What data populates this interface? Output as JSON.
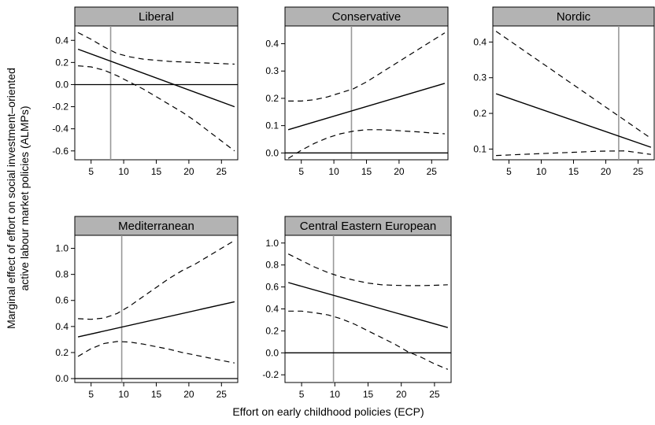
{
  "figure": {
    "ylabel_line1": "Marginal effect of effort on social investment–oriented",
    "ylabel_line2": "active labour market policies (ALMPs)",
    "xlabel": "Effort on early childhood policies (ECP)"
  },
  "chart_data": [
    {
      "type": "line",
      "title": "Liberal",
      "xlim": [
        2.5,
        27.5
      ],
      "ylim": [
        -0.68,
        0.53
      ],
      "xticks": [
        5,
        10,
        15,
        20,
        25
      ],
      "yticks": [
        -0.6,
        -0.4,
        -0.2,
        0.0,
        0.2,
        0.4
      ],
      "ytick_labels": [
        "-0.6",
        "-0.4",
        "-0.2",
        "0.0",
        "0.2",
        "0.4"
      ],
      "vline": 8,
      "series": [
        {
          "x": [
            3,
            27
          ],
          "y": [
            0.32,
            -0.2
          ],
          "style": "solid"
        },
        {
          "x": [
            3,
            5,
            7,
            9,
            11,
            13,
            15,
            17,
            19,
            21,
            23,
            25,
            27
          ],
          "y": [
            0.47,
            0.41,
            0.34,
            0.28,
            0.25,
            0.23,
            0.22,
            0.21,
            0.205,
            0.2,
            0.195,
            0.19,
            0.185
          ],
          "style": "dashed"
        },
        {
          "x": [
            3,
            5,
            7,
            9,
            11,
            13,
            15,
            17,
            19,
            21,
            23,
            25,
            27
          ],
          "y": [
            0.17,
            0.16,
            0.13,
            0.08,
            0.02,
            -0.04,
            -0.11,
            -0.18,
            -0.25,
            -0.33,
            -0.42,
            -0.51,
            -0.6
          ],
          "style": "dashed"
        },
        {
          "x": [
            2.5,
            27.5
          ],
          "y": [
            0,
            0
          ],
          "style": "zero"
        }
      ]
    },
    {
      "type": "line",
      "title": "Conservative",
      "xlim": [
        2.5,
        27.5
      ],
      "ylim": [
        -0.025,
        0.465
      ],
      "xticks": [
        5,
        10,
        15,
        20,
        25
      ],
      "yticks": [
        0.0,
        0.1,
        0.2,
        0.3,
        0.4
      ],
      "ytick_labels": [
        "0.0",
        "0.1",
        "0.2",
        "0.3",
        "0.4"
      ],
      "vline": 12.7,
      "series": [
        {
          "x": [
            3,
            27
          ],
          "y": [
            0.085,
            0.255
          ],
          "style": "solid"
        },
        {
          "x": [
            3,
            5,
            7,
            9,
            11,
            13,
            15,
            17,
            19,
            21,
            23,
            25,
            27
          ],
          "y": [
            0.19,
            0.19,
            0.195,
            0.205,
            0.22,
            0.235,
            0.26,
            0.29,
            0.32,
            0.35,
            0.38,
            0.41,
            0.44
          ],
          "style": "dashed"
        },
        {
          "x": [
            3,
            5,
            7,
            9,
            11,
            13,
            15,
            17,
            19,
            21,
            23,
            25,
            27
          ],
          "y": [
            -0.02,
            0.01,
            0.035,
            0.055,
            0.07,
            0.08,
            0.085,
            0.085,
            0.083,
            0.08,
            0.077,
            0.073,
            0.07
          ],
          "style": "dashed"
        },
        {
          "x": [
            2.5,
            27.5
          ],
          "y": [
            0,
            0
          ],
          "style": "zero"
        }
      ]
    },
    {
      "type": "line",
      "title": "Nordic",
      "xlim": [
        2.5,
        27.5
      ],
      "ylim": [
        0.07,
        0.445
      ],
      "xticks": [
        5,
        10,
        15,
        20,
        25
      ],
      "yticks": [
        0.1,
        0.2,
        0.3,
        0.4
      ],
      "ytick_labels": [
        "0.1",
        "0.2",
        "0.3",
        "0.4"
      ],
      "vline": 22,
      "series": [
        {
          "x": [
            3,
            27
          ],
          "y": [
            0.255,
            0.105
          ],
          "style": "solid"
        },
        {
          "x": [
            3,
            5,
            7,
            9,
            11,
            13,
            15,
            17,
            19,
            21,
            23,
            25,
            27
          ],
          "y": [
            0.43,
            0.405,
            0.38,
            0.355,
            0.33,
            0.305,
            0.28,
            0.255,
            0.23,
            0.205,
            0.18,
            0.155,
            0.13
          ],
          "style": "dashed"
        },
        {
          "x": [
            3,
            7,
            11,
            15,
            19,
            23,
            27
          ],
          "y": [
            0.082,
            0.085,
            0.088,
            0.091,
            0.094,
            0.095,
            0.085
          ],
          "style": "dashed"
        }
      ]
    },
    {
      "type": "line",
      "title": "Mediterranean",
      "xlim": [
        2.5,
        27.5
      ],
      "ylim": [
        -0.03,
        1.1
      ],
      "xticks": [
        5,
        10,
        15,
        20,
        25
      ],
      "yticks": [
        0.0,
        0.2,
        0.4,
        0.6,
        0.8,
        1.0
      ],
      "ytick_labels": [
        "0.0",
        "0.2",
        "0.4",
        "0.6",
        "0.8",
        "1.0"
      ],
      "vline": 9.7,
      "series": [
        {
          "x": [
            3,
            27
          ],
          "y": [
            0.32,
            0.59
          ],
          "style": "solid"
        },
        {
          "x": [
            3,
            5,
            7,
            9,
            11,
            13,
            15,
            17,
            19,
            21,
            23,
            25,
            27
          ],
          "y": [
            0.46,
            0.455,
            0.465,
            0.5,
            0.56,
            0.63,
            0.7,
            0.77,
            0.83,
            0.88,
            0.94,
            1.0,
            1.06
          ],
          "style": "dashed"
        },
        {
          "x": [
            3,
            5,
            7,
            9,
            11,
            13,
            15,
            17,
            19,
            21,
            23,
            25,
            27
          ],
          "y": [
            0.17,
            0.23,
            0.27,
            0.285,
            0.28,
            0.265,
            0.245,
            0.225,
            0.2,
            0.18,
            0.16,
            0.14,
            0.12
          ],
          "style": "dashed"
        },
        {
          "x": [
            2.5,
            27.5
          ],
          "y": [
            0,
            0
          ],
          "style": "zero"
        }
      ]
    },
    {
      "type": "line",
      "title": "Central Eastern European",
      "xlim": [
        2.5,
        27.5
      ],
      "ylim": [
        -0.27,
        1.07
      ],
      "xticks": [
        5,
        10,
        15,
        20,
        25
      ],
      "yticks": [
        -0.2,
        0.0,
        0.2,
        0.4,
        0.6,
        0.8,
        1.0
      ],
      "ytick_labels": [
        "-0.2",
        "0.0",
        "0.2",
        "0.4",
        "0.6",
        "0.8",
        "1.0"
      ],
      "vline": 9.8,
      "series": [
        {
          "x": [
            3,
            27
          ],
          "y": [
            0.64,
            0.23
          ],
          "style": "solid"
        },
        {
          "x": [
            3,
            5,
            7,
            9,
            11,
            13,
            15,
            17,
            19,
            21,
            23,
            25,
            27
          ],
          "y": [
            0.9,
            0.84,
            0.78,
            0.73,
            0.69,
            0.66,
            0.635,
            0.62,
            0.615,
            0.612,
            0.612,
            0.615,
            0.62
          ],
          "style": "dashed"
        },
        {
          "x": [
            3,
            5,
            7,
            9,
            11,
            13,
            15,
            17,
            19,
            21,
            23,
            25,
            27
          ],
          "y": [
            0.38,
            0.38,
            0.365,
            0.345,
            0.31,
            0.26,
            0.2,
            0.14,
            0.08,
            0.01,
            -0.04,
            -0.1,
            -0.15
          ],
          "style": "dashed"
        },
        {
          "x": [
            2.5,
            27.5
          ],
          "y": [
            0,
            0
          ],
          "style": "zero"
        }
      ]
    }
  ]
}
